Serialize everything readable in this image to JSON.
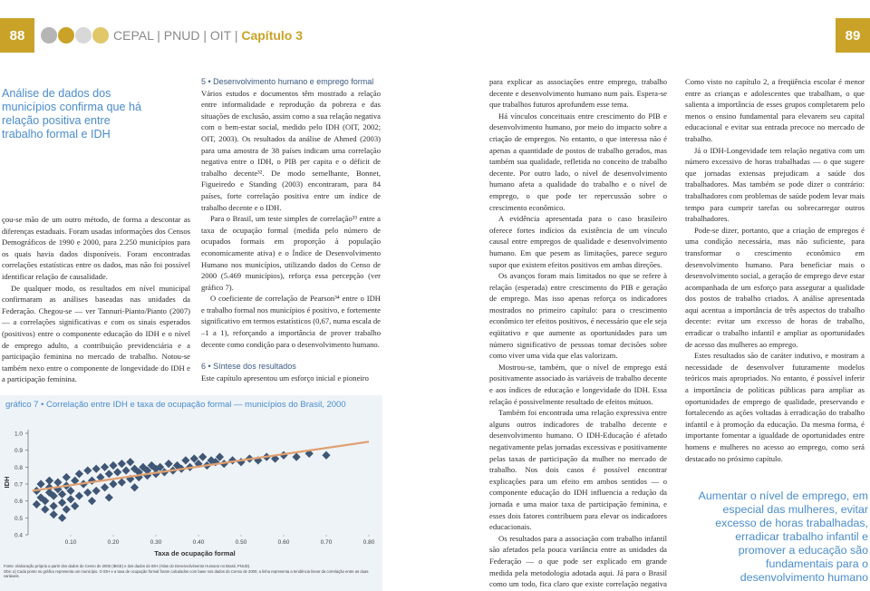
{
  "header": {
    "left_page_number": "88",
    "running_title": "CEPAL | PNUD | OIT |",
    "chapter": "Capítulo 3",
    "right_page_number": "89"
  },
  "sidebar_quote": "Análise de dados dos municípios confirma que há relação positiva entre trabalho formal e IDH",
  "left_column": [
    "çou-se mão de um outro método, de forma a descontar as diferenças estaduais. Foram usadas informações dos Censos Demográficos de 1990 e 2000, para 2.250 municípios para os quais havia dados disponíveis. Foram encontradas correlações estatísticas entre os dados, mas não foi possível identificar relação de causalidade.",
    "De qualquer modo, os resultados em nível municipal confirmaram as análises baseadas nas unidades da Federação. Chegou-se — ver Tannuri-Pianto/Pianto (2007) — a correlações significativas e com os sinais esperados (positivos) entre o componente educação do IDH e o nível de emprego adulto, a contribuição previdenciária e a participação feminina no mercado de trabalho. Notou-se também nexo entre o componente de longevidade do IDH e a participação feminina."
  ],
  "middle_column": {
    "heading_1": "5 • Desenvolvimento humano e emprego formal",
    "paragraphs_1": [
      "Vários estudos e documentos têm mostrado a relação entre informalidade e reprodução da pobreza e das situações de exclusão, assim como a sua relação negativa com o bem-estar social, medido pelo IDH (OIT, 2002; OIT, 2003). Os resultados da análise de Ahmed (2003) para uma amostra de 38 países indicam uma correlação negativa entre o IDH, o PIB per capita e o déficit de trabalho decente³². De modo semelhante, Bonnet, Figueiredo e Standing (2003) encontraram, para 84 países, forte correlação positiva entre um índice de trabalho decente e o IDH.",
      "Para o Brasil, um teste simples de correlação³³ entre a taxa de ocupação formal (medida pelo número de ocupados formais em proporção à população economicamente ativa) e o Índice de Desenvolvimento Humano nos municípios, utilizando dados do Censo de 2000 (5.469 municípios), reforça essa percepção (ver gráfico 7).",
      "O coeficiente de correlação de Pearson³⁴ entre o IDH e trabalho formal nos municípios é positivo, e fortemente significativo em termos estatísticos (0,67, numa escala de –1 a 1), reforçando a importância de prover trabalho decente como condição para o desenvolvimento humano."
    ],
    "heading_2": "6 • Síntese dos resultados",
    "paragraphs_2": [
      "Este capítulo apresentou um esforço inicial e pioneiro"
    ]
  },
  "right_column_1": [
    "para explicar as associações entre emprego, trabalho decente e desenvolvimento humano num país. Espera-se que trabalhos futuros aprofundem esse tema.",
    "Há vínculos conceituais entre crescimento do PIB e desenvolvimento humano, por meio do impacto sobre a criação de empregos. No entanto, o que interessa não é apenas a quantidade de postos de trabalho gerados, mas também sua qualidade, refletida no conceito de trabalho decente. Por outro lado, o nível de desenvolvimento humano afeta a qualidade do trabalho e o nível de emprego, o que pode ter repercussão sobre o crescimento econômico.",
    "A evidência apresentada para o caso brasileiro oferece fortes indícios da existência de um vínculo causal entre empregos de qualidade e desenvolvimento humano. Em que pesem as limitações, parece seguro supor que existem efeitos positivos em ambas direções.",
    "Os avanços foram mais limitados no que se refere à relação (esperada) entre crescimento do PIB e geração de emprego. Mas isso apenas reforça os indicadores mostrados no primeiro capítulo: para o crescimento econômico ter efeitos positivos, é necessário que ele seja eqüitativo e que aumente as oportunidades para um número significativo de pessoas tomar decisões sobre como viver uma vida que elas valorizam.",
    "Mostrou-se, também, que o nível de emprego está positivamente associado às variáveis de trabalho decente e aos índices de educação e longevidade do IDH. Essa relação é possivelmente resultado de efeitos mútuos.",
    "Também foi encontrada uma relação expressiva entre alguns outros indicadores de trabalho decente e desenvolvimento humano. O IDH-Educação é afetado negativamente pelas jornadas excessivas e positivamente pelas taxas de participação da mulher no mercado de trabalho. Nos dois casos é possível encontrar explicações para um efeito em ambos sentidos — o componente educação do IDH influencia a redução da jornada e uma maior taxa de participação feminina, e esses dois fatores contribuem para elevar os indicadores educacionais.",
    "Os resultados para a associação com trabalho infantil são afetados pela pouca variância entre as unidades da Federação — o que pode ser explicado em grande medida pela metodologia adotada aqui. Já para o Brasil como um todo, fica claro que existe correlação negativa entre a incidência de trabalho infantil e o componente educação do IDH, como seria de se esperar."
  ],
  "right_column_2": [
    "Como visto no capítulo 2, a freqüência escolar é menor entre as crianças e adolescentes que trabalham, o que salienta a importância de esses grupos completarem pelo menos o ensino fundamental para elevarem seu capital educacional e evitar sua entrada precoce no mercado de trabalho.",
    "Já o IDH-Longevidade tem relação negativa com um número excessivo de horas trabalhadas — o que sugere que jornadas extensas prejudicam a saúde dos trabalhadores. Mas também se pode dizer o contrário: trabalhadores com problemas de saúde podem levar mais tempo para cumprir tarefas ou sobrecarregar outros trabalhadores.",
    "Pode-se dizer, portanto, que a criação de empregos é uma condição necessária, mas não suficiente, para transformar o crescimento econômico em desenvolvimento humano. Para beneficiar mais o desenvolvimento social, a geração de emprego deve estar acompanhada de um esforço para assegurar a qualidade dos postos de trabalho criados. A análise apresentada aqui acentua a importância de três aspectos do trabalho decente: evitar um excesso de horas de trabalho, erradicar o trabalho infantil e ampliar as oportunidades de acesso das mulheres ao emprego.",
    "Estes resultados são de caráter indutivo, e mostram a necessidade de desenvolver futuramente modelos teóricos mais apropriados. No entanto, é possível inferir a importância de políticas públicas para ampliar as oportunidades de emprego de qualidade, preservando e fortalecendo as ações voltadas à erradicação do trabalho infantil e à promoção da educação. Da mesma forma, é importante fomentar a igualdade de oportunidades entre homens e mulheres no acesso ao emprego, como será destacado no próximo capítulo."
  ],
  "pull_quote": "Aumentar o nível de emprego, em especial das mulheres, evitar excesso de horas trabalhadas, erradicar trabalho infantil e promover a educação são fundamentais para o desenvolvimento humano",
  "chart_data": {
    "type": "scatter",
    "title": "gráfico 7 • Correlação entre IDH e taxa de ocupação formal — municípios do Brasil, 2000",
    "x_label": "Taxa de ocupação formal",
    "y_label": "IDH",
    "color": "#3f5675",
    "xlim": [
      0,
      0.82
    ],
    "ylim": [
      0.4,
      1.0
    ],
    "xticks": [
      {
        "value": 0.1,
        "label": "0.10"
      },
      {
        "value": 0.2,
        "label": "0.20"
      },
      {
        "value": 0.3,
        "label": "0.30"
      },
      {
        "value": 0.4,
        "label": "0.40"
      },
      {
        "value": 0.5,
        "label": "0.50"
      },
      {
        "value": 0.6,
        "label": "0.60"
      },
      {
        "value": 0.7,
        "label": "0.70"
      },
      {
        "value": 0.8,
        "label": "0.80"
      }
    ],
    "yticks": [
      0.4,
      0.5,
      0.6,
      0.7,
      0.8,
      0.9,
      {
        "value": 1.0,
        "label": "1.0"
      }
    ],
    "x": [
      0.02,
      0.03,
      0.04,
      0.05,
      0.06,
      0.07,
      0.08,
      0.09,
      0.1,
      0.03,
      0.05,
      0.07,
      0.09,
      0.11,
      0.04,
      0.06,
      0.08,
      0.1,
      0.12,
      0.14,
      0.16,
      0.18,
      0.2,
      0.22,
      0.24,
      0.26,
      0.28,
      0.3,
      0.13,
      0.15,
      0.17,
      0.19,
      0.21,
      0.23,
      0.25,
      0.27,
      0.29,
      0.31,
      0.33,
      0.35,
      0.12,
      0.14,
      0.16,
      0.18,
      0.2,
      0.22,
      0.24,
      0.26,
      0.28,
      0.3,
      0.32,
      0.34,
      0.36,
      0.38,
      0.4,
      0.42,
      0.44,
      0.46,
      0.48,
      0.5,
      0.37,
      0.39,
      0.41,
      0.43,
      0.45,
      0.52,
      0.54,
      0.56,
      0.58,
      0.6,
      0.63,
      0.66,
      0.7,
      0.06,
      0.09,
      0.11,
      0.15,
      0.19,
      0.25,
      0.02,
      0.05,
      0.08
    ],
    "values": [
      0.58,
      0.62,
      0.6,
      0.65,
      0.63,
      0.67,
      0.64,
      0.69,
      0.66,
      0.7,
      0.72,
      0.71,
      0.74,
      0.72,
      0.55,
      0.57,
      0.59,
      0.61,
      0.63,
      0.65,
      0.66,
      0.68,
      0.7,
      0.71,
      0.73,
      0.74,
      0.75,
      0.76,
      0.7,
      0.72,
      0.74,
      0.76,
      0.77,
      0.78,
      0.79,
      0.8,
      0.81,
      0.8,
      0.82,
      0.81,
      0.76,
      0.78,
      0.79,
      0.8,
      0.81,
      0.82,
      0.83,
      0.77,
      0.78,
      0.79,
      0.77,
      0.78,
      0.79,
      0.8,
      0.82,
      0.81,
      0.83,
      0.82,
      0.84,
      0.83,
      0.84,
      0.85,
      0.86,
      0.84,
      0.86,
      0.85,
      0.84,
      0.86,
      0.85,
      0.87,
      0.86,
      0.88,
      0.87,
      0.52,
      0.55,
      0.57,
      0.6,
      0.62,
      0.68,
      0.66,
      0.68,
      0.5
    ],
    "trend_line": {
      "x": [
        0.01,
        0.8
      ],
      "values": [
        0.66,
        0.95
      ],
      "color": "#e0a070"
    },
    "source": "Fonte: elaboração própria a partir dos dados do Censo de 2000 (IBGE) e dos dados do IDH (Atlas do Desenvolvimento Humano no Brasil, PNUD).",
    "note": "Obs: a) Cada ponto no gráfico representa um município. O IDH e a taxa de ocupação formal foram calculados com base nos dados do Censo de 2000; a linha representa a tendência linear da correlação entre as duas variáveis."
  }
}
